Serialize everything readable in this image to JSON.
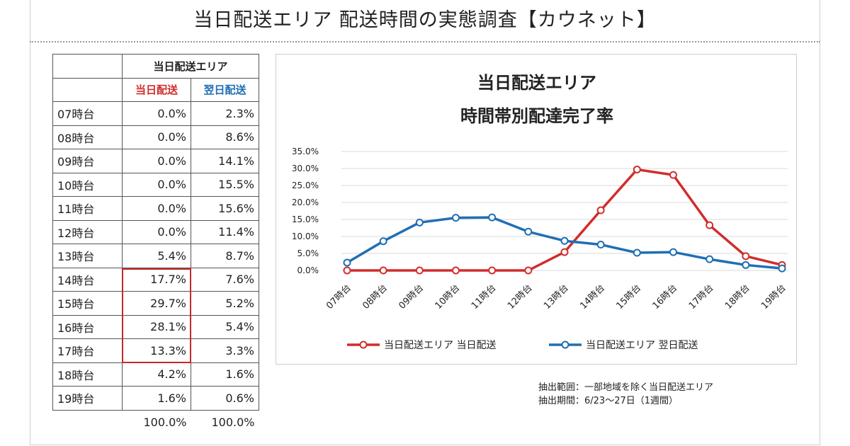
{
  "page": {
    "title": "当日配送エリア 配送時間の実態調査【カウネット】"
  },
  "table": {
    "group_header": "当日配送エリア",
    "col_same_day": "当日配送",
    "col_next_day": "翌日配送",
    "rows": [
      {
        "hour": "07時台",
        "same": "0.0%",
        "next": "2.3%"
      },
      {
        "hour": "08時台",
        "same": "0.0%",
        "next": "8.6%"
      },
      {
        "hour": "09時台",
        "same": "0.0%",
        "next": "14.1%"
      },
      {
        "hour": "10時台",
        "same": "0.0%",
        "next": "15.5%"
      },
      {
        "hour": "11時台",
        "same": "0.0%",
        "next": "15.6%"
      },
      {
        "hour": "12時台",
        "same": "0.0%",
        "next": "11.4%"
      },
      {
        "hour": "13時台",
        "same": "5.4%",
        "next": "8.7%"
      },
      {
        "hour": "14時台",
        "same": "17.7%",
        "next": "7.6%"
      },
      {
        "hour": "15時台",
        "same": "29.7%",
        "next": "5.2%"
      },
      {
        "hour": "16時台",
        "same": "28.1%",
        "next": "5.4%"
      },
      {
        "hour": "17時台",
        "same": "13.3%",
        "next": "3.3%"
      },
      {
        "hour": "18時台",
        "same": "4.2%",
        "next": "1.6%"
      },
      {
        "hour": "19時台",
        "same": "1.6%",
        "next": "0.6%"
      }
    ],
    "total_same": "100.0%",
    "total_next": "100.0%"
  },
  "note": {
    "line1": "抽出範囲：一部地域を除く当日配送エリア",
    "line2": "抽出期間：6/23〜27日（1週間）"
  },
  "colors": {
    "same_day": "#d22c2c",
    "next_day": "#1f6fb4",
    "grid": "#d9d9d9"
  },
  "chart_data": {
    "type": "line",
    "title": "当日配送エリア",
    "subtitle": "時間帯別配達完了率",
    "categories": [
      "07時台",
      "08時台",
      "09時台",
      "10時台",
      "11時台",
      "12時台",
      "13時台",
      "14時台",
      "15時台",
      "16時台",
      "17時台",
      "18時台",
      "19時台"
    ],
    "series": [
      {
        "name": "当日配送エリア 当日配送",
        "color": "#d22c2c",
        "values": [
          0.0,
          0.0,
          0.0,
          0.0,
          0.0,
          0.0,
          5.4,
          17.7,
          29.7,
          28.1,
          13.3,
          4.2,
          1.6
        ]
      },
      {
        "name": "当日配送エリア 翌日配送",
        "color": "#1f6fb4",
        "values": [
          2.3,
          8.6,
          14.1,
          15.5,
          15.6,
          11.4,
          8.7,
          7.6,
          5.2,
          5.4,
          3.3,
          1.6,
          0.6
        ]
      }
    ],
    "yticks": [
      "0.0%",
      "5.0%",
      "10.0%",
      "15.0%",
      "20.0%",
      "25.0%",
      "30.0%",
      "35.0%"
    ],
    "ylim": [
      0,
      35
    ],
    "grid": true,
    "legend_position": "bottom"
  }
}
